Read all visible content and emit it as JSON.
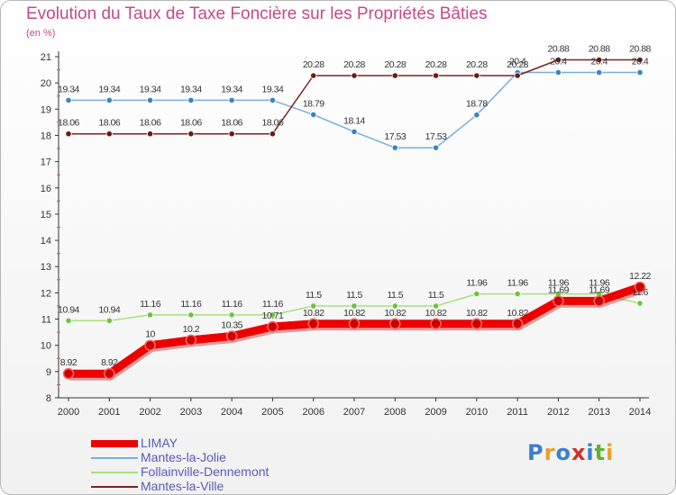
{
  "title": "Evolution du Taux de Taxe Foncière sur les Propriétés Bâties",
  "unit_label": "(en %)",
  "logo": {
    "text": "Proxiti"
  },
  "chart_data": {
    "type": "line",
    "title": "Evolution du Taux de Taxe Foncière sur les Propriétés Bâties",
    "ylabel": "(en %)",
    "xlabel": "",
    "ylim": [
      8,
      21
    ],
    "yticks": [
      "8",
      "9",
      "10",
      "11",
      "12",
      "13",
      "14",
      "15",
      "16",
      "17",
      "18",
      "19",
      "20",
      "21"
    ],
    "grid": false,
    "legend_position": "bottom-left",
    "categories": [
      "2000",
      "2001",
      "2002",
      "2003",
      "2004",
      "2005",
      "2006",
      "2007",
      "2008",
      "2009",
      "2010",
      "2011",
      "2012",
      "2013",
      "2014"
    ],
    "series": [
      {
        "name": "LIMAY",
        "color": "#ee0000",
        "marker_color": "#cc0000",
        "values": [
          8.92,
          8.92,
          10,
          10.2,
          10.35,
          10.71,
          10.82,
          10.82,
          10.82,
          10.82,
          10.82,
          10.82,
          11.69,
          11.69,
          12.22
        ],
        "labels": [
          "8.92",
          "8.92",
          "10",
          "10.2",
          "10.35",
          "10.71",
          "10.82",
          "10.82",
          "10.82",
          "10.82",
          "10.82",
          "10.82",
          "11.69",
          "11.69",
          "12.22"
        ]
      },
      {
        "name": "Mantes-la-Jolie",
        "color": "#7aaedb",
        "marker_color": "#3a83c4",
        "values": [
          19.34,
          19.34,
          19.34,
          19.34,
          19.34,
          19.34,
          18.79,
          18.14,
          17.53,
          17.53,
          18.78,
          20.4,
          20.4,
          20.4,
          20.4
        ],
        "labels": [
          "19.34",
          "19.34",
          "19.34",
          "19.34",
          "19.34",
          "19.34",
          "18.79",
          "18.14",
          "17.53",
          "17.53",
          "18.78",
          "20.4",
          "20.4",
          "20.4",
          "20.4"
        ]
      },
      {
        "name": "Follainville-Dennemont",
        "color": "#a8e07a",
        "marker_color": "#6cc33a",
        "values": [
          10.94,
          10.94,
          11.16,
          11.16,
          11.16,
          11.16,
          11.5,
          11.5,
          11.5,
          11.5,
          11.96,
          11.96,
          11.96,
          11.96,
          11.6
        ],
        "labels": [
          "10.94",
          "10.94",
          "11.16",
          "11.16",
          "11.16",
          "11.16",
          "11.5",
          "11.5",
          "11.5",
          "11.5",
          "11.96",
          "11.96",
          "11.96",
          "11.96",
          "11.6"
        ]
      },
      {
        "name": "Mantes-la-Ville",
        "color": "#7a2424",
        "marker_color": "#6a1a1a",
        "values": [
          18.06,
          18.06,
          18.06,
          18.06,
          18.06,
          18.06,
          20.28,
          20.28,
          20.28,
          20.28,
          20.28,
          20.28,
          20.88,
          20.88,
          20.88
        ],
        "labels": [
          "18.06",
          "18.06",
          "18.06",
          "18.06",
          "18.06",
          "18.06",
          "20.28",
          "20.28",
          "20.28",
          "20.28",
          "20.28",
          "20.28",
          "20.88",
          "20.88",
          "20.88"
        ]
      }
    ]
  }
}
